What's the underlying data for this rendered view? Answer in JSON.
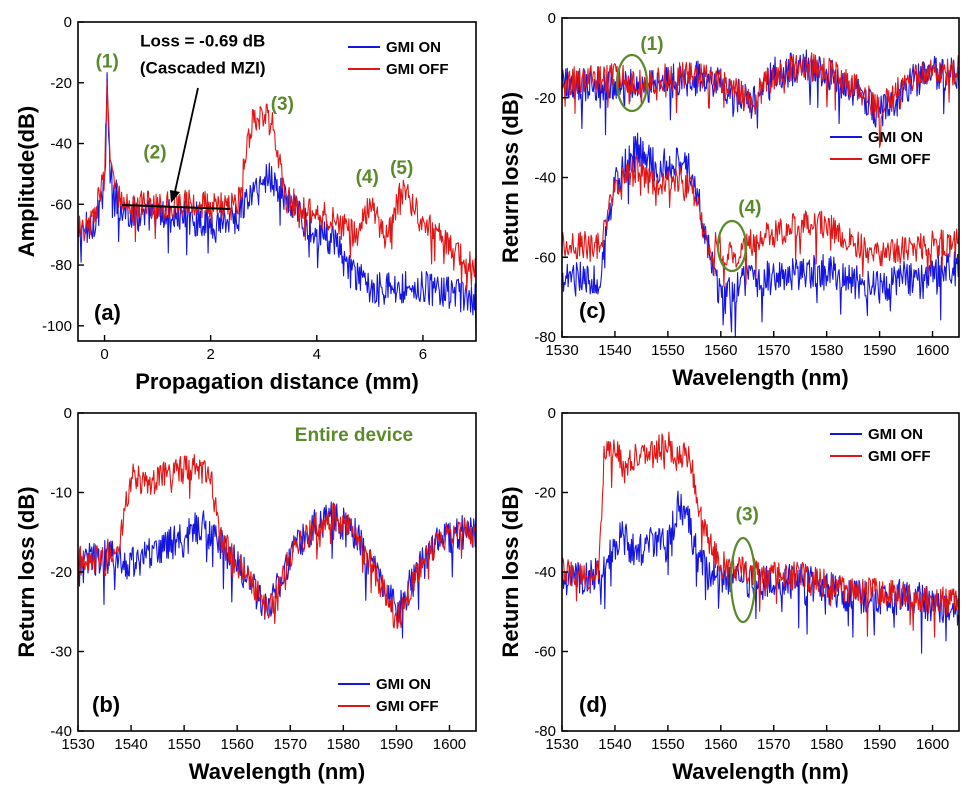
{
  "colors": {
    "on": "#1515e0",
    "off": "#e01515",
    "annotation": "#5a8a2c",
    "axis": "#000000"
  },
  "chart_data": [
    {
      "id": "a",
      "type": "line",
      "panel_label": "(a)",
      "xlabel": "Propagation distance (mm)",
      "ylabel": "Amplitude(dB)",
      "xlim": [
        -0.5,
        7.0
      ],
      "ylim": [
        -105,
        0
      ],
      "xticks": [
        0,
        2,
        4,
        6
      ],
      "yticks": [
        0,
        -20,
        -40,
        -60,
        -80,
        -100
      ],
      "legend": {
        "position": "top-right",
        "entries": [
          "GMI ON",
          "GMI OFF"
        ]
      },
      "annotations": [
        {
          "text": "(1)",
          "x": 0.05,
          "y": -15
        },
        {
          "text": "(2)",
          "x": 0.95,
          "y": -45
        },
        {
          "text": "(3)",
          "x": 3.35,
          "y": -29
        },
        {
          "text": "(4)",
          "x": 4.95,
          "y": -53
        },
        {
          "text": "(5)",
          "x": 5.6,
          "y": -50
        },
        {
          "text": "Loss = -0.69 dB",
          "x": 1.85,
          "y": -8
        },
        {
          "text": "(Cascaded MZI)",
          "x": 1.85,
          "y": -17
        }
      ],
      "series": [
        {
          "name": "GMI ON",
          "x": [
            -0.5,
            -0.2,
            0.0,
            0.05,
            0.1,
            0.3,
            0.8,
            1.5,
            2.0,
            2.5,
            2.7,
            2.9,
            3.1,
            3.4,
            3.8,
            4.3,
            4.7,
            5.2,
            5.7,
            6.2,
            6.6,
            7.0
          ],
          "y": [
            -70,
            -66,
            -55,
            -20,
            -50,
            -62,
            -64,
            -64,
            -66,
            -64,
            -58,
            -55,
            -50,
            -58,
            -66,
            -72,
            -84,
            -88,
            -87,
            -88,
            -90,
            -92
          ]
        },
        {
          "name": "GMI OFF",
          "x": [
            -0.5,
            -0.2,
            0.0,
            0.05,
            0.1,
            0.3,
            0.8,
            1.5,
            2.0,
            2.5,
            2.65,
            2.8,
            3.0,
            3.2,
            3.4,
            3.8,
            4.3,
            4.7,
            5.0,
            5.3,
            5.6,
            6.0,
            6.4,
            7.0
          ],
          "y": [
            -69,
            -65,
            -50,
            -19,
            -45,
            -60,
            -60,
            -60,
            -60,
            -61,
            -45,
            -32,
            -30,
            -35,
            -58,
            -62,
            -65,
            -70,
            -60,
            -72,
            -55,
            -66,
            -72,
            -82
          ]
        }
      ]
    },
    {
      "id": "b",
      "type": "line",
      "panel_label": "(b)",
      "xlabel": "Wavelength (nm)",
      "ylabel": "Return loss (dB)",
      "xlim": [
        1530,
        1605
      ],
      "ylim": [
        -40,
        0
      ],
      "xticks": [
        1530,
        1540,
        1550,
        1560,
        1570,
        1580,
        1590,
        1600
      ],
      "yticks": [
        0,
        -10,
        -20,
        -30,
        -40
      ],
      "legend": {
        "position": "bottom-right",
        "entries": [
          "GMI ON",
          "GMI OFF"
        ]
      },
      "annotations": [
        {
          "text": "Entire device",
          "x": 1582,
          "y": -3.5
        }
      ],
      "series": [
        {
          "name": "GMI ON",
          "x": [
            1530,
            1535,
            1540,
            1545,
            1550,
            1553,
            1556,
            1560,
            1563,
            1566,
            1570,
            1575,
            1578,
            1582,
            1586,
            1590,
            1594,
            1598,
            1602,
            1605
          ],
          "y": [
            -19,
            -18,
            -19,
            -17,
            -16,
            -14,
            -16,
            -19,
            -22,
            -25,
            -18,
            -14,
            -13,
            -15,
            -20,
            -25,
            -20,
            -16,
            -15,
            -15
          ]
        },
        {
          "name": "GMI OFF",
          "x": [
            1530,
            1535,
            1538,
            1540,
            1543,
            1546,
            1549,
            1552,
            1555,
            1557,
            1560,
            1563,
            1566,
            1570,
            1575,
            1578,
            1582,
            1586,
            1590,
            1594,
            1598,
            1602,
            1605
          ],
          "y": [
            -18,
            -18,
            -16,
            -8,
            -9,
            -8,
            -7,
            -7,
            -8,
            -16,
            -19,
            -22,
            -25,
            -18,
            -14,
            -13,
            -15,
            -20,
            -26,
            -20,
            -16,
            -15,
            -15
          ]
        }
      ]
    },
    {
      "id": "c",
      "type": "line",
      "panel_label": "(c)",
      "xlabel": "Wavelength (nm)",
      "ylabel": "Return loss (dB)",
      "xlim": [
        1530,
        1605
      ],
      "ylim": [
        -80,
        0
      ],
      "xticks": [
        1530,
        1540,
        1550,
        1560,
        1570,
        1580,
        1590,
        1600
      ],
      "yticks": [
        0,
        -20,
        -40,
        -60,
        -80
      ],
      "legend": {
        "position": "middle-right",
        "entries": [
          "GMI ON",
          "GMI OFF"
        ]
      },
      "annotations": [
        {
          "text": "(1)",
          "x": 1547,
          "y": -8
        },
        {
          "text": "(4)",
          "x": 1565.5,
          "y": -49
        }
      ],
      "series": [
        {
          "name": "GMI ON (upper)",
          "x": [
            1530,
            1540,
            1545,
            1550,
            1556,
            1560,
            1566,
            1570,
            1576,
            1580,
            1586,
            1590,
            1596,
            1600,
            1605
          ],
          "y": [
            -17,
            -16,
            -18,
            -16,
            -15,
            -17,
            -22,
            -14,
            -12,
            -14,
            -19,
            -24,
            -16,
            -14,
            -14
          ]
        },
        {
          "name": "GMI OFF (upper)",
          "x": [
            1530,
            1540,
            1545,
            1550,
            1556,
            1560,
            1566,
            1570,
            1576,
            1580,
            1586,
            1590,
            1596,
            1600,
            1605
          ],
          "y": [
            -16,
            -15,
            -16,
            -15,
            -14,
            -16,
            -21,
            -14,
            -12,
            -13,
            -18,
            -23,
            -15,
            -14,
            -13
          ]
        },
        {
          "name": "GMI ON (lower)",
          "x": [
            1530,
            1537,
            1540,
            1544,
            1548,
            1552,
            1555,
            1557,
            1560,
            1565,
            1570,
            1575,
            1580,
            1585,
            1590,
            1595,
            1600,
            1605
          ],
          "y": [
            -65,
            -66,
            -42,
            -32,
            -38,
            -35,
            -40,
            -55,
            -70,
            -66,
            -65,
            -64,
            -63,
            -66,
            -68,
            -65,
            -63,
            -63
          ]
        },
        {
          "name": "GMI OFF (lower)",
          "x": [
            1530,
            1537,
            1540,
            1544,
            1548,
            1552,
            1555,
            1557,
            1560,
            1563,
            1566,
            1570,
            1576,
            1580,
            1585,
            1590,
            1595,
            1600,
            1605
          ],
          "y": [
            -57,
            -57,
            -42,
            -38,
            -42,
            -40,
            -44,
            -55,
            -58,
            -60,
            -56,
            -54,
            -51,
            -52,
            -56,
            -60,
            -58,
            -57,
            -56
          ]
        }
      ]
    },
    {
      "id": "d",
      "type": "line",
      "panel_label": "(d)",
      "xlabel": "Wavelength (nm)",
      "ylabel": "Return loss (dB)",
      "xlim": [
        1530,
        1605
      ],
      "ylim": [
        -80,
        0
      ],
      "xticks": [
        1530,
        1540,
        1550,
        1560,
        1570,
        1580,
        1590,
        1600
      ],
      "yticks": [
        0,
        -20,
        -40,
        -60,
        -80
      ],
      "legend": {
        "position": "top-right",
        "entries": [
          "GMI ON",
          "GMI OFF"
        ]
      },
      "annotations": [
        {
          "text": "(3)",
          "x": 1565,
          "y": -27
        }
      ],
      "series": [
        {
          "name": "GMI ON",
          "x": [
            1530,
            1535,
            1538,
            1541,
            1544,
            1547,
            1550,
            1552,
            1554,
            1556,
            1560,
            1565,
            1570,
            1575,
            1580,
            1585,
            1590,
            1595,
            1600,
            1605
          ],
          "y": [
            -42,
            -41,
            -40,
            -30,
            -36,
            -32,
            -34,
            -23,
            -28,
            -38,
            -41,
            -42,
            -43,
            -42,
            -44,
            -46,
            -47,
            -46,
            -48,
            -50
          ]
        },
        {
          "name": "GMI OFF",
          "x": [
            1530,
            1535,
            1537,
            1538,
            1540,
            1542,
            1544,
            1546,
            1548,
            1550,
            1552,
            1554,
            1556,
            1558,
            1560,
            1565,
            1570,
            1575,
            1580,
            1585,
            1590,
            1595,
            1600,
            1605
          ],
          "y": [
            -40,
            -42,
            -40,
            -9,
            -9,
            -15,
            -10,
            -12,
            -9,
            -8,
            -12,
            -10,
            -25,
            -33,
            -38,
            -40,
            -41,
            -41,
            -43,
            -45,
            -45,
            -46,
            -47,
            -48
          ]
        }
      ]
    }
  ]
}
